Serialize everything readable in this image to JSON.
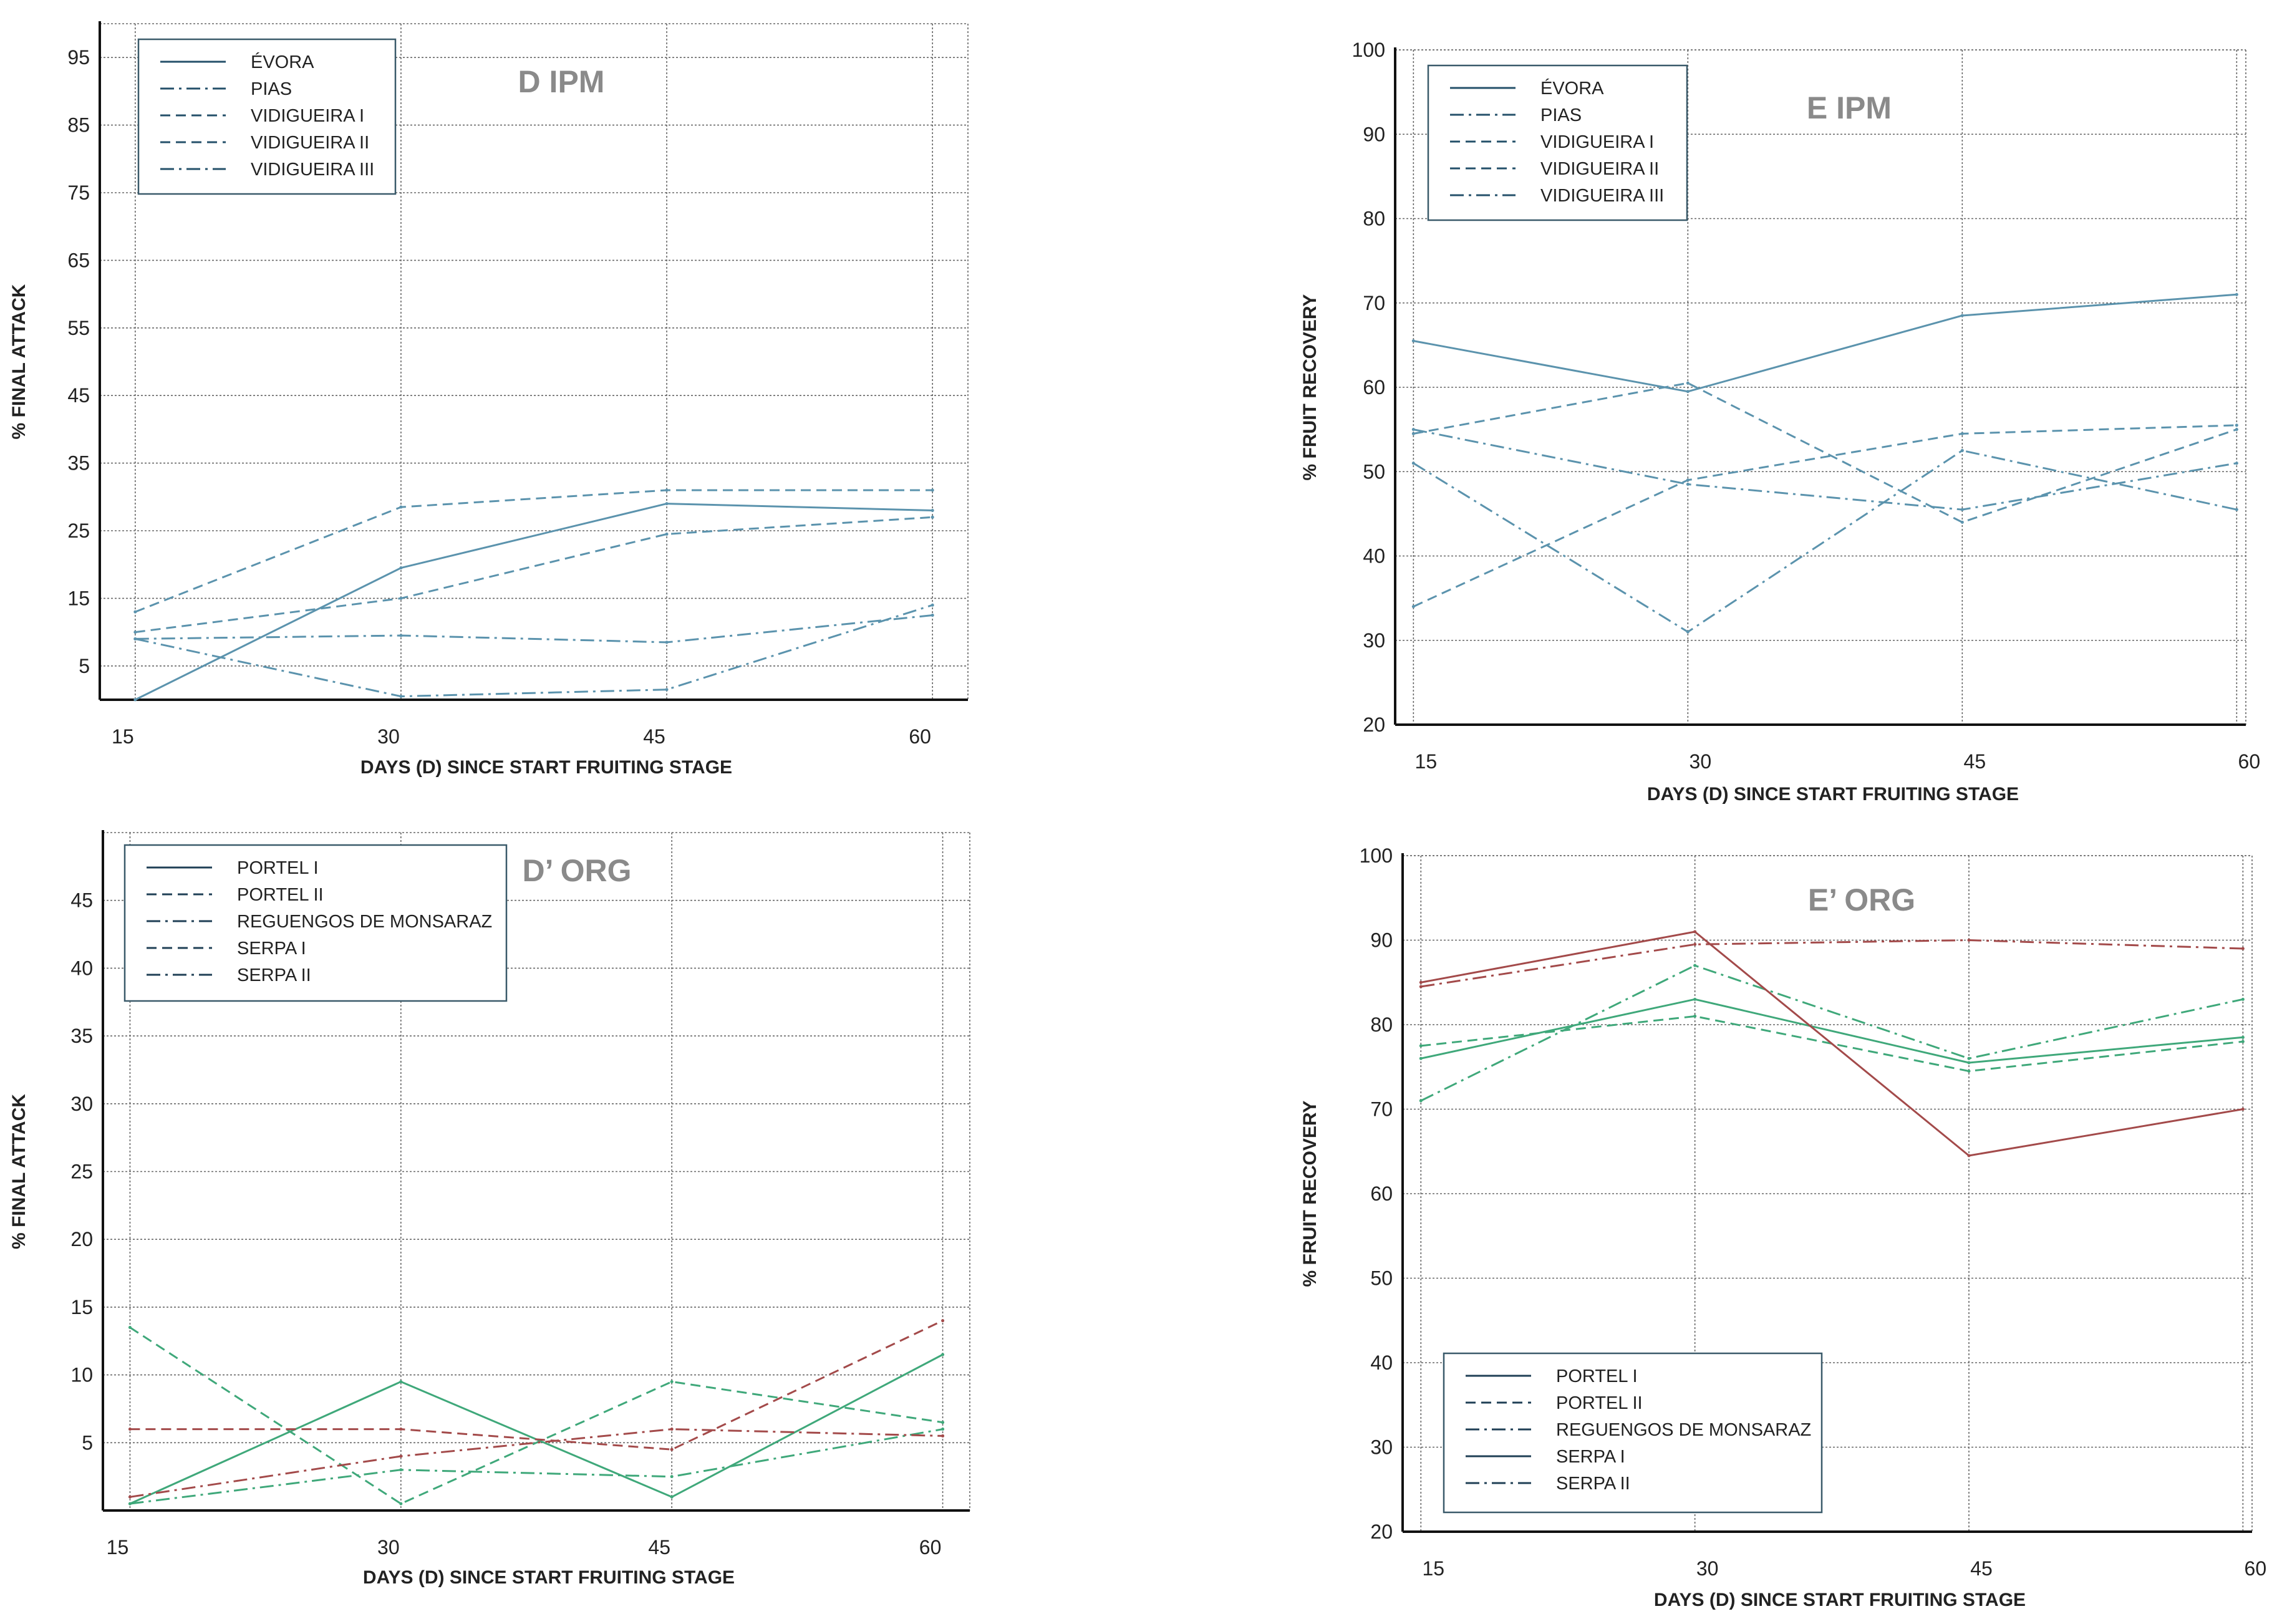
{
  "chart_data": [
    {
      "type": "line",
      "title": "D IPM",
      "xlabel": "DAYS (D) SINCE START FRUITING STAGE",
      "ylabel": "% FINAL ATTACK",
      "x": [
        15,
        30,
        45,
        60
      ],
      "xlim": [
        13,
        62
      ],
      "ylim": [
        0,
        100
      ],
      "yticks": [
        5,
        15,
        25,
        35,
        45,
        55,
        65,
        75,
        85,
        95
      ],
      "grid": true,
      "legend_position": "top-left",
      "series": [
        {
          "name": "ÉVORA",
          "values": [
            0,
            19.5,
            29,
            28
          ],
          "color": "#5b93ad",
          "dash": "solid"
        },
        {
          "name": "PIAS",
          "values": [
            9,
            9.5,
            8.5,
            12.5
          ],
          "color": "#5b93ad",
          "dash": "dashdot"
        },
        {
          "name": "VIDIGUEIRA I",
          "values": [
            13,
            28.5,
            31,
            31
          ],
          "color": "#5b93ad",
          "dash": "dashed"
        },
        {
          "name": "VIDIGUEIRA II",
          "values": [
            10,
            15,
            24.5,
            27
          ],
          "color": "#5b93ad",
          "dash": "dashed"
        },
        {
          "name": "VIDIGUEIRA III",
          "values": [
            9,
            0.5,
            1.5,
            14
          ],
          "color": "#5b93ad",
          "dash": "dashdot"
        }
      ]
    },
    {
      "type": "line",
      "title": "E IPM",
      "xlabel": "DAYS (D) SINCE START FRUITING STAGE",
      "ylabel": "% FRUIT RECOVERY",
      "x": [
        15,
        30,
        45,
        60
      ],
      "xlim": [
        14,
        60.5
      ],
      "ylim": [
        20,
        100
      ],
      "yticks": [
        20,
        30,
        40,
        50,
        60,
        70,
        80,
        90,
        100
      ],
      "grid": true,
      "legend_position": "top-left",
      "series": [
        {
          "name": "ÉVORA",
          "values": [
            65.5,
            59.5,
            68.5,
            71
          ],
          "color": "#5b93ad",
          "dash": "solid"
        },
        {
          "name": "PIAS",
          "values": [
            55,
            48.5,
            45.5,
            51
          ],
          "color": "#5b93ad",
          "dash": "dashdot"
        },
        {
          "name": "VIDIGUEIRA I",
          "values": [
            34,
            49,
            54.5,
            55.5
          ],
          "color": "#5b93ad",
          "dash": "dashed"
        },
        {
          "name": "VIDIGUEIRA II",
          "values": [
            54.5,
            60.5,
            44,
            55
          ],
          "color": "#5b93ad",
          "dash": "dashed"
        },
        {
          "name": "VIDIGUEIRA III",
          "values": [
            51,
            31,
            52.5,
            45.5
          ],
          "color": "#5b93ad",
          "dash": "dashdot"
        }
      ]
    },
    {
      "type": "line",
      "title": "D’ ORG",
      "xlabel": "DAYS (D) SINCE START FRUITING STAGE",
      "ylabel": "% FINAL ATTACK",
      "x": [
        15,
        30,
        45,
        60
      ],
      "xlim": [
        13.5,
        61.5
      ],
      "ylim": [
        0,
        50
      ],
      "yticks": [
        5,
        10,
        15,
        20,
        25,
        30,
        35,
        40,
        45
      ],
      "grid": true,
      "legend_position": "top-left",
      "series": [
        {
          "name": "PORTEL I",
          "values": [
            0.5,
            9.5,
            1,
            11.5
          ],
          "color": "#3fa87a",
          "dash": "solid"
        },
        {
          "name": "PORTEL II",
          "values": [
            13.5,
            0.5,
            9.5,
            6.5
          ],
          "color": "#3fa87a",
          "dash": "dashed"
        },
        {
          "name": "REGUENGOS DE MONSARAZ",
          "values": [
            0.5,
            3,
            2.5,
            6
          ],
          "color": "#3fa87a",
          "dash": "dashdot"
        },
        {
          "name": "SERPA I",
          "values": [
            6,
            6,
            4.5,
            14
          ],
          "color": "#a34a4a",
          "dash": "dashed"
        },
        {
          "name": "SERPA II",
          "values": [
            1,
            4,
            6,
            5.5
          ],
          "color": "#a34a4a",
          "dash": "dashdot"
        }
      ]
    },
    {
      "type": "line",
      "title": "E’ ORG",
      "xlabel": "DAYS (D) SINCE START FRUITING STAGE",
      "ylabel": "% FRUIT RECOVERY",
      "x": [
        15,
        30,
        45,
        60
      ],
      "xlim": [
        14,
        60.5
      ],
      "ylim": [
        20,
        100
      ],
      "yticks": [
        20,
        30,
        40,
        50,
        60,
        70,
        80,
        90,
        100
      ],
      "grid": true,
      "legend_position": "bottom-left",
      "series": [
        {
          "name": "PORTEL I",
          "values": [
            76,
            83,
            75.5,
            78.5
          ],
          "color": "#3fa87a",
          "dash": "solid"
        },
        {
          "name": "PORTEL II",
          "values": [
            77.5,
            81,
            74.5,
            78
          ],
          "color": "#3fa87a",
          "dash": "dashed"
        },
        {
          "name": "REGUENGOS DE MONSARAZ",
          "values": [
            71,
            87,
            76,
            83
          ],
          "color": "#3fa87a",
          "dash": "dashdot"
        },
        {
          "name": "SERPA I",
          "values": [
            85,
            91,
            64.5,
            70
          ],
          "color": "#a34a4a",
          "dash": "solid"
        },
        {
          "name": "SERPA II",
          "values": [
            84.5,
            89.5,
            90,
            89
          ],
          "color": "#a34a4a",
          "dash": "dashdot"
        }
      ]
    }
  ]
}
